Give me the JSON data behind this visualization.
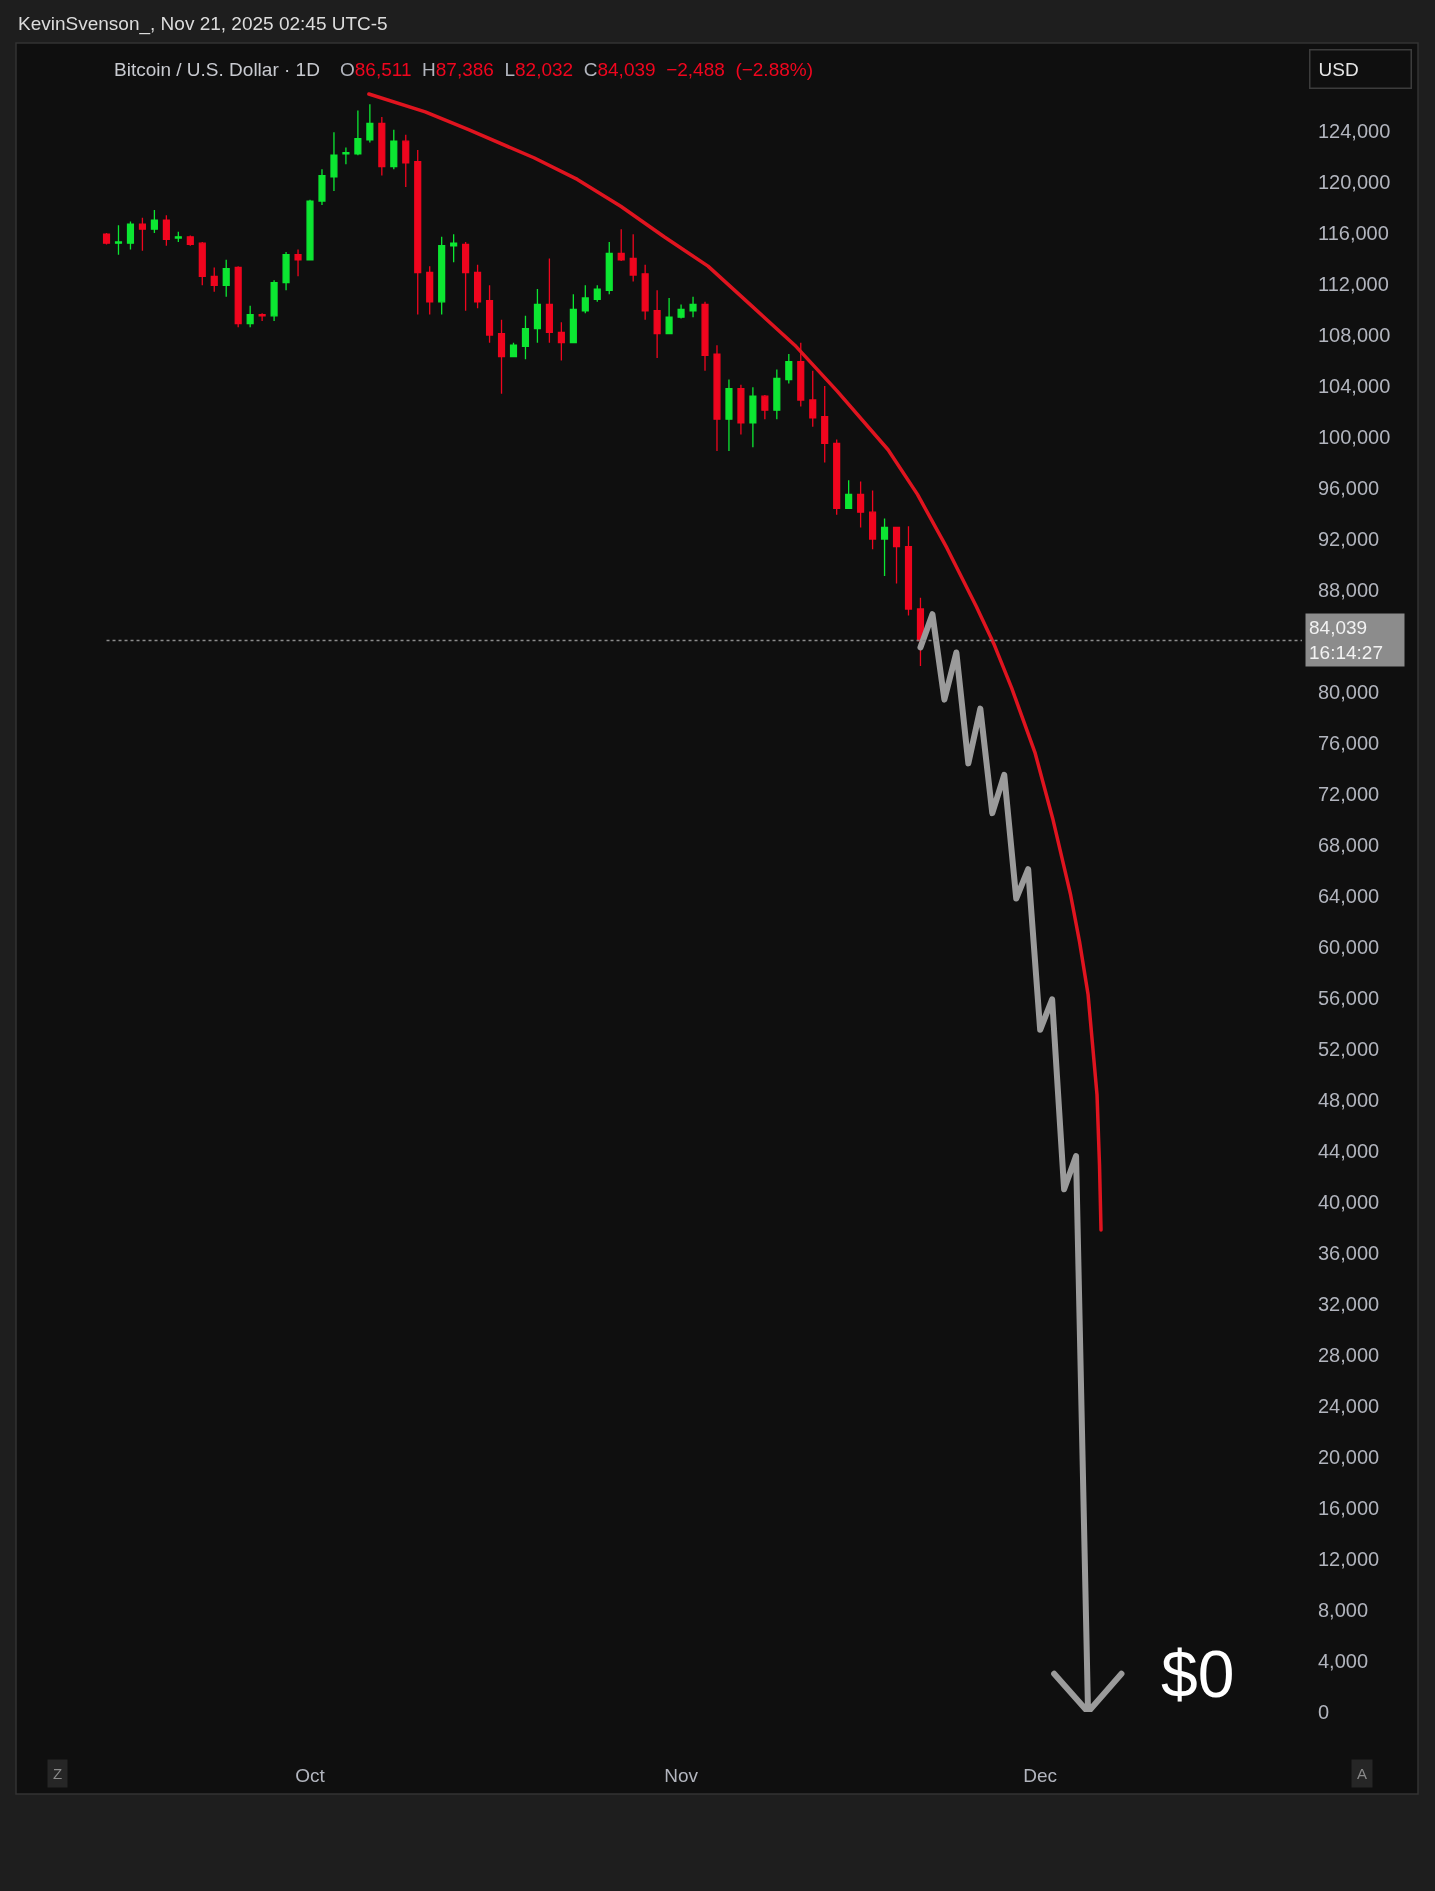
{
  "chart_data": {
    "type": "candlestick",
    "title": "Bitcoin / U.S. Dollar · 1D",
    "subtitle": "O86,511 H87,386 L82,032 C84,039 −2,488 (−2.88%)",
    "x": [
      "2025-09-14",
      "2025-09-15",
      "2025-09-16",
      "2025-09-17",
      "2025-09-18",
      "2025-09-19",
      "2025-09-20",
      "2025-09-21",
      "2025-09-22",
      "2025-09-23",
      "2025-09-24",
      "2025-09-25",
      "2025-09-26",
      "2025-09-27",
      "2025-09-28",
      "2025-09-29",
      "2025-09-30",
      "2025-10-01",
      "2025-10-02",
      "2025-10-03",
      "2025-10-04",
      "2025-10-05",
      "2025-10-06",
      "2025-10-07",
      "2025-10-08",
      "2025-10-09",
      "2025-10-10",
      "2025-10-11",
      "2025-10-12",
      "2025-10-13",
      "2025-10-14",
      "2025-10-15",
      "2025-10-16",
      "2025-10-17",
      "2025-10-18",
      "2025-10-19",
      "2025-10-20",
      "2025-10-21",
      "2025-10-22",
      "2025-10-23",
      "2025-10-24",
      "2025-10-25",
      "2025-10-26",
      "2025-10-27",
      "2025-10-28",
      "2025-10-29",
      "2025-10-30",
      "2025-10-31",
      "2025-11-01",
      "2025-11-02",
      "2025-11-03",
      "2025-11-04",
      "2025-11-05",
      "2025-11-06",
      "2025-11-07",
      "2025-11-08",
      "2025-11-09",
      "2025-11-10",
      "2025-11-11",
      "2025-11-12",
      "2025-11-13",
      "2025-11-14",
      "2025-11-15",
      "2025-11-16",
      "2025-11-17",
      "2025-11-18",
      "2025-11-19",
      "2025-11-20",
      "2025-11-21"
    ],
    "ohlc": [
      [
        115900,
        116000,
        115100,
        115200
      ],
      [
        115200,
        116600,
        114300,
        115300
      ],
      [
        115200,
        116900,
        114700,
        116700
      ],
      [
        116700,
        117200,
        114600,
        116300
      ],
      [
        116300,
        117800,
        116000,
        117000
      ],
      [
        117000,
        117400,
        115000,
        115500
      ],
      [
        115600,
        116100,
        115300,
        115700
      ],
      [
        115700,
        115800,
        115000,
        115100
      ],
      [
        115200,
        115300,
        111900,
        112600
      ],
      [
        112600,
        113300,
        111400,
        111900
      ],
      [
        111900,
        113900,
        111000,
        113200
      ],
      [
        113300,
        113400,
        108600,
        108900
      ],
      [
        108900,
        110300,
        108600,
        109600
      ],
      [
        109600,
        109700,
        109100,
        109500
      ],
      [
        109500,
        112300,
        109100,
        112100
      ],
      [
        112100,
        114500,
        111500,
        114300
      ],
      [
        114300,
        114700,
        112600,
        113900
      ],
      [
        113900,
        118600,
        113900,
        118500
      ],
      [
        118500,
        121000,
        118200,
        120500
      ],
      [
        120400,
        123900,
        119300,
        122100
      ],
      [
        122200,
        122700,
        121400,
        122300
      ],
      [
        122200,
        125600,
        122100,
        123400
      ],
      [
        123300,
        126100,
        123100,
        124600
      ],
      [
        124600,
        125100,
        120500,
        121200
      ],
      [
        121200,
        124100,
        121000,
        123200
      ],
      [
        123200,
        123700,
        119600,
        121500
      ],
      [
        121600,
        122500,
        109600,
        112900
      ],
      [
        112900,
        113400,
        109600,
        110600
      ],
      [
        110600,
        115700,
        109600,
        115000
      ],
      [
        115000,
        115900,
        113700,
        115200
      ],
      [
        115100,
        115300,
        109900,
        112900
      ],
      [
        112900,
        113500,
        110100,
        110600
      ],
      [
        110700,
        111900,
        107400,
        108000
      ],
      [
        108100,
        109200,
        103400,
        106300
      ],
      [
        106300,
        107400,
        106300,
        107200
      ],
      [
        107100,
        109500,
        106100,
        108500
      ],
      [
        108500,
        111600,
        107400,
        110400
      ],
      [
        110400,
        114000,
        107400,
        108200
      ],
      [
        108200,
        109000,
        106000,
        107400
      ],
      [
        107400,
        111200,
        107400,
        110000
      ],
      [
        109900,
        111900,
        109700,
        110900
      ],
      [
        110800,
        111900,
        110600,
        111600
      ],
      [
        111500,
        115300,
        111200,
        114400
      ],
      [
        114400,
        116300,
        113800,
        113900
      ],
      [
        114000,
        115900,
        112200,
        112700
      ],
      [
        112800,
        113500,
        109200,
        109900
      ],
      [
        109900,
        111500,
        106200,
        108100
      ],
      [
        108100,
        110900,
        108100,
        109400
      ],
      [
        109400,
        110400,
        109300,
        110000
      ],
      [
        109900,
        111000,
        109400,
        110400
      ],
      [
        110400,
        110600,
        105200,
        106400
      ],
      [
        106500,
        107200,
        98900,
        101400
      ],
      [
        101400,
        104500,
        98900,
        103800
      ],
      [
        103800,
        104100,
        100200,
        101100
      ],
      [
        101100,
        103900,
        99200,
        103200
      ],
      [
        103200,
        103300,
        101400,
        102100
      ],
      [
        102100,
        105300,
        101400,
        104600
      ],
      [
        104500,
        106500,
        104200,
        105900
      ],
      [
        105900,
        107400,
        102400,
        102900
      ],
      [
        102900,
        105200,
        100800,
        101500
      ],
      [
        101600,
        104000,
        98000,
        99500
      ],
      [
        99500,
        99800,
        93900,
        94400
      ],
      [
        94400,
        96600,
        94400,
        95500
      ],
      [
        95500,
        96500,
        92900,
        94100
      ],
      [
        94100,
        95800,
        91200,
        92000
      ],
      [
        92000,
        93600,
        89100,
        92900
      ],
      [
        92900,
        92900,
        88500,
        91400
      ],
      [
        91400,
        93000,
        86000,
        86500
      ],
      [
        86511,
        87386,
        82032,
        84039
      ]
    ],
    "colors": [
      "#f0051e",
      "#0ce632",
      "#0ce632",
      "#f0051e",
      "#0ce632",
      "#f0051e",
      "#0ce632",
      "#f0051e",
      "#f0051e",
      "#f0051e",
      "#0ce632",
      "#f0051e",
      "#0ce632",
      "#f0051e",
      "#0ce632",
      "#0ce632",
      "#f0051e",
      "#0ce632",
      "#0ce632",
      "#0ce632",
      "#0ce632",
      "#0ce632",
      "#0ce632",
      "#f0051e",
      "#0ce632",
      "#f0051e",
      "#f0051e",
      "#f0051e",
      "#0ce632",
      "#0ce632",
      "#f0051e",
      "#f0051e",
      "#f0051e",
      "#f0051e",
      "#0ce632",
      "#0ce632",
      "#0ce632",
      "#f0051e",
      "#f0051e",
      "#0ce632",
      "#0ce632",
      "#0ce632",
      "#0ce632",
      "#f0051e",
      "#f0051e",
      "#f0051e",
      "#f0051e",
      "#0ce632",
      "#0ce632",
      "#0ce632",
      "#f0051e",
      "#f0051e",
      "#0ce632",
      "#f0051e",
      "#0ce632",
      "#f0051e",
      "#0ce632",
      "#0ce632",
      "#f0051e",
      "#f0051e",
      "#f0051e",
      "#f0051e",
      "#0ce632",
      "#f0051e",
      "#f0051e",
      "#0ce632",
      "#f0051e",
      "#f0051e",
      "#f0051e"
    ],
    "series": [
      {
        "type": "line",
        "color": "#e0141f",
        "x": [
          "2025-10-05T22:00",
          "2025-10-10T15:00",
          "2025-10-14T06:00",
          "2025-10-19T17:00",
          "2025-10-23T08:00",
          "2025-10-26T23:00",
          "2025-10-30T14:00",
          "2025-11-03T06:00",
          "2025-11-06T21:00",
          "2025-11-10T12:00",
          "2025-11-14T01:00",
          "2025-11-18T07:00",
          "2025-11-20T18:00",
          "2025-11-23T05:00",
          "2025-11-25T16:00",
          "2025-11-27T04:00",
          "2025-11-28T15:00",
          "2025-11-30T14:00",
          "2025-12-02T01:00",
          "2025-12-03T13:00",
          "2025-12-04T07:00",
          "2025-12-05T00:00",
          "2025-12-05T18:00",
          "2025-12-05T23:00",
          "2025-12-06T02:00"
        ],
        "values": [
          126900,
          125500,
          124100,
          121900,
          120200,
          118100,
          115700,
          113400,
          110300,
          107200,
          103600,
          99000,
          95500,
          91300,
          86700,
          83700,
          80300,
          75200,
          70100,
          64100,
          60400,
          56300,
          48400,
          42900,
          37800
        ]
      },
      {
        "type": "line",
        "color": "#9b9b9b",
        "x": [
          "2025-11-21",
          "2025-11-22",
          "2025-11-23",
          "2025-11-24",
          "2025-11-25",
          "2025-11-26",
          "2025-11-27",
          "2025-11-28",
          "2025-11-29",
          "2025-11-30",
          "2025-12-01",
          "2025-12-02",
          "2025-12-03",
          "2025-12-04",
          "2025-12-05",
          "2025-12-02T04:00",
          "2025-12-05",
          "2025-12-07T19:00"
        ],
        "values": [
          83500,
          86100,
          79400,
          83100,
          74400,
          78700,
          70500,
          73500,
          63800,
          66100,
          53500,
          55900,
          41000,
          43600,
          0,
          3000,
          0,
          3000
        ]
      }
    ],
    "xlim": [
      "2025-09-06T10:30",
      "2025-12-22T21:00"
    ],
    "xticks": [
      {
        "value": "2025-10-01",
        "label": "Oct"
      },
      {
        "value": "2025-11-01",
        "label": "Nov"
      },
      {
        "value": "2025-12-01",
        "label": "Dec"
      }
    ],
    "ylim": [
      0,
      130900
    ],
    "yticks": [
      0,
      {
        "value": 4000,
        "label": "4,000"
      },
      {
        "value": 8000,
        "label": "8,000"
      },
      {
        "value": 12000,
        "label": "12,000"
      },
      {
        "value": 16000,
        "label": "16,000"
      },
      {
        "value": 20000,
        "label": "20,000"
      },
      {
        "value": 24000,
        "label": "24,000"
      },
      {
        "value": 28000,
        "label": "28,000"
      },
      {
        "value": 32000,
        "label": "32,000"
      },
      {
        "value": 36000,
        "label": "36,000"
      },
      {
        "value": 40000,
        "label": "40,000"
      },
      {
        "value": 44000,
        "label": "44,000"
      },
      {
        "value": 48000,
        "label": "48,000"
      },
      {
        "value": 52000,
        "label": "52,000"
      },
      {
        "value": 56000,
        "label": "56,000"
      },
      {
        "value": 60000,
        "label": "60,000"
      },
      {
        "value": 64000,
        "label": "64,000"
      },
      {
        "value": 68000,
        "label": "68,000"
      },
      {
        "value": 72000,
        "label": "72,000"
      },
      {
        "value": 76000,
        "label": "76,000"
      },
      {
        "value": 80000,
        "label": "80,000"
      },
      {
        "value": 88000,
        "label": "88,000"
      },
      {
        "value": 92000,
        "label": "92,000"
      },
      {
        "value": 96000,
        "label": "96,000"
      },
      {
        "value": 100000,
        "label": "100,000"
      },
      {
        "value": 104000,
        "label": "104,000"
      },
      {
        "value": 108000,
        "label": "108,000"
      },
      {
        "value": 112000,
        "label": "112,000"
      },
      {
        "value": 116000,
        "label": "116,000"
      },
      {
        "value": 120000,
        "label": "120,000"
      },
      {
        "value": 124000,
        "label": "124,000"
      }
    ],
    "ref_lines": [
      {
        "axis": "y",
        "value": 84039,
        "label": "84,039\n16:14:27",
        "color": "#8c8c8c",
        "line_style": "dotted"
      }
    ],
    "annotations": [
      "KevinSvenson_, Nov 21, 2025 02:45 UTC-5",
      "USD",
      "Z",
      "A",
      "$0"
    ],
    "grid": false
  }
}
